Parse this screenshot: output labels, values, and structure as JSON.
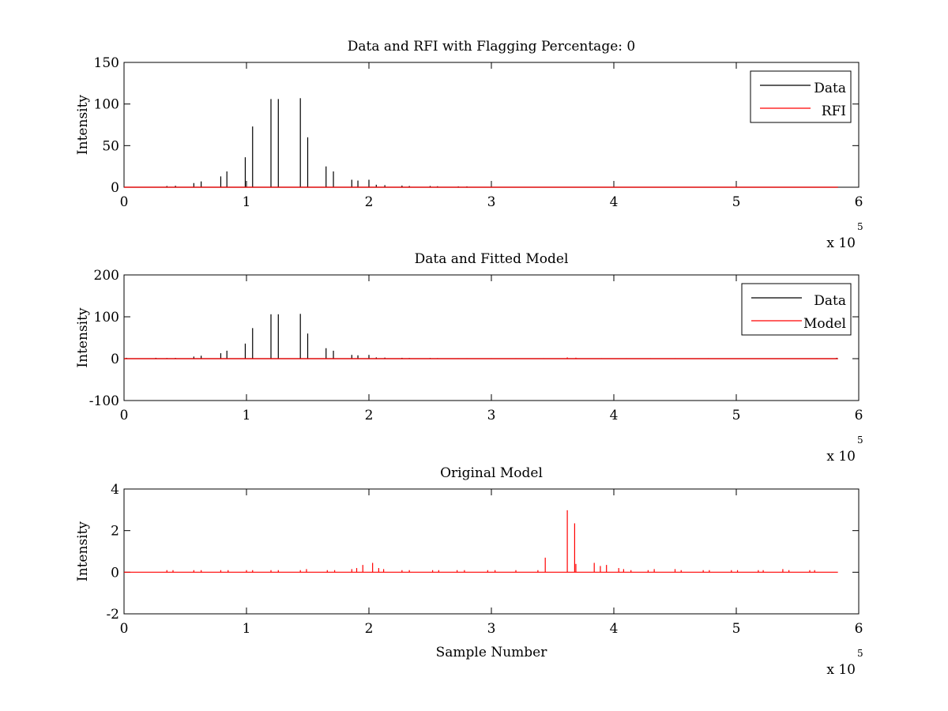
{
  "colors": {
    "data": "#000000",
    "red": "#ff0000",
    "axes": "#000000",
    "background": "#ffffff"
  },
  "chart_data": [
    {
      "type": "line",
      "title": "Data and RFI with Flagging Percentage: 0",
      "xlabel": "",
      "ylabel": "Intensity",
      "xlim": [
        0,
        6
      ],
      "ylim": [
        0,
        150
      ],
      "xticks": [
        "0",
        "1",
        "2",
        "3",
        "4",
        "5",
        "6"
      ],
      "yticks": [
        "0",
        "50",
        "100",
        "150"
      ],
      "x_multiplier": {
        "base": "x 10",
        "exponent": "5"
      },
      "grid": false,
      "legend_position": "top-right",
      "series": [
        {
          "name": "Data",
          "color": "#000000",
          "x_end": 5.83,
          "spikes": [
            [
              0.35,
              1.5
            ],
            [
              0.42,
              1.8
            ],
            [
              0.57,
              5
            ],
            [
              0.63,
              7
            ],
            [
              0.79,
              13
            ],
            [
              0.84,
              19
            ],
            [
              0.99,
              36
            ],
            [
              1.05,
              73
            ],
            [
              1.2,
              106
            ],
            [
              1.26,
              106
            ],
            [
              1.44,
              107
            ],
            [
              1.5,
              60
            ],
            [
              1.65,
              25
            ],
            [
              1.71,
              19
            ],
            [
              1.86,
              9
            ],
            [
              1.91,
              8
            ],
            [
              2.0,
              9
            ],
            [
              2.06,
              3
            ],
            [
              2.13,
              2.5
            ],
            [
              2.27,
              2
            ],
            [
              2.33,
              1.5
            ],
            [
              2.5,
              1.5
            ],
            [
              2.56,
              1.2
            ],
            [
              2.73,
              1
            ],
            [
              2.8,
              1
            ]
          ]
        },
        {
          "name": "RFI",
          "color": "#ff0000",
          "x_end": 5.83,
          "spikes": []
        }
      ]
    },
    {
      "type": "line",
      "title": "Data and Fitted Model",
      "xlabel": "",
      "ylabel": "Intensity",
      "xlim": [
        0,
        6
      ],
      "ylim": [
        -100,
        200
      ],
      "xticks": [
        "0",
        "1",
        "2",
        "3",
        "4",
        "5",
        "6"
      ],
      "yticks": [
        "-100",
        "0",
        "100",
        "200"
      ],
      "x_multiplier": {
        "base": "x 10",
        "exponent": "5"
      },
      "grid": false,
      "legend_position": "top-right",
      "series": [
        {
          "name": "Data",
          "color": "#000000",
          "x_end": 5.83,
          "spikes": [
            [
              0.02,
              2
            ],
            [
              0.26,
              2
            ],
            [
              0.35,
              1.5
            ],
            [
              0.42,
              1.8
            ],
            [
              0.57,
              5
            ],
            [
              0.63,
              7
            ],
            [
              0.79,
              13
            ],
            [
              0.84,
              19
            ],
            [
              0.99,
              36
            ],
            [
              1.05,
              73
            ],
            [
              1.2,
              106
            ],
            [
              1.26,
              106
            ],
            [
              1.44,
              107
            ],
            [
              1.5,
              60
            ],
            [
              1.65,
              25
            ],
            [
              1.71,
              19
            ],
            [
              1.86,
              9
            ],
            [
              1.91,
              8
            ],
            [
              2.0,
              9
            ],
            [
              2.06,
              3
            ],
            [
              2.13,
              2.5
            ],
            [
              2.27,
              2
            ],
            [
              2.33,
              1.5
            ],
            [
              2.5,
              1.5
            ],
            [
              2.56,
              1.2
            ],
            [
              2.73,
              1
            ],
            [
              2.8,
              1
            ],
            [
              3.0,
              1
            ],
            [
              3.2,
              1
            ],
            [
              3.43,
              1
            ],
            [
              3.62,
              1
            ],
            [
              3.7,
              1
            ],
            [
              3.9,
              1
            ],
            [
              4.1,
              1
            ],
            [
              4.3,
              1
            ],
            [
              4.5,
              1
            ],
            [
              4.77,
              1
            ],
            [
              5.82,
              2
            ]
          ]
        },
        {
          "name": "Model",
          "color": "#ff0000",
          "x_end": 5.83,
          "spikes": [
            [
              1.2,
              0.5
            ],
            [
              1.44,
              0.5
            ],
            [
              3.62,
              3
            ],
            [
              3.69,
              2.3
            ]
          ]
        }
      ]
    },
    {
      "type": "line",
      "title": "Original Model",
      "xlabel": "Sample Number",
      "ylabel": "Intensity",
      "xlim": [
        0,
        6
      ],
      "ylim": [
        -2,
        4
      ],
      "xticks": [
        "0",
        "1",
        "2",
        "3",
        "4",
        "5",
        "6"
      ],
      "yticks": [
        "-2",
        "0",
        "2",
        "4"
      ],
      "x_multiplier": {
        "base": "x 10",
        "exponent": "5"
      },
      "grid": false,
      "legend_position": "none",
      "series": [
        {
          "name": "",
          "color": "#ff0000",
          "x_end": 5.83,
          "spikes": [
            [
              0.35,
              0.1
            ],
            [
              0.4,
              0.1
            ],
            [
              0.57,
              0.1
            ],
            [
              0.63,
              0.1
            ],
            [
              0.79,
              0.1
            ],
            [
              0.85,
              0.1
            ],
            [
              1.0,
              0.1
            ],
            [
              1.05,
              0.1
            ],
            [
              1.2,
              0.1
            ],
            [
              1.26,
              0.1
            ],
            [
              1.44,
              0.1
            ],
            [
              1.49,
              0.15
            ],
            [
              1.66,
              0.1
            ],
            [
              1.72,
              0.1
            ],
            [
              1.86,
              0.15
            ],
            [
              1.9,
              0.2
            ],
            [
              1.95,
              0.35
            ],
            [
              2.03,
              0.45
            ],
            [
              2.08,
              0.2
            ],
            [
              2.12,
              0.15
            ],
            [
              2.27,
              0.1
            ],
            [
              2.33,
              0.1
            ],
            [
              2.52,
              0.1
            ],
            [
              2.57,
              0.1
            ],
            [
              2.72,
              0.1
            ],
            [
              2.78,
              0.1
            ],
            [
              2.97,
              0.1
            ],
            [
              3.03,
              0.1
            ],
            [
              3.2,
              0.1
            ],
            [
              3.38,
              0.1
            ],
            [
              3.44,
              0.7
            ],
            [
              3.62,
              2.98
            ],
            [
              3.68,
              2.35
            ],
            [
              3.69,
              0.4
            ],
            [
              3.84,
              0.45
            ],
            [
              3.89,
              0.3
            ],
            [
              3.94,
              0.35
            ],
            [
              4.04,
              0.2
            ],
            [
              4.08,
              0.15
            ],
            [
              4.14,
              0.1
            ],
            [
              4.28,
              0.1
            ],
            [
              4.33,
              0.15
            ],
            [
              4.5,
              0.15
            ],
            [
              4.55,
              0.1
            ],
            [
              4.73,
              0.1
            ],
            [
              4.78,
              0.1
            ],
            [
              4.96,
              0.1
            ],
            [
              5.01,
              0.1
            ],
            [
              5.18,
              0.1
            ],
            [
              5.22,
              0.1
            ],
            [
              5.38,
              0.15
            ],
            [
              5.43,
              0.1
            ],
            [
              5.6,
              0.1
            ],
            [
              5.64,
              0.1
            ]
          ]
        }
      ]
    }
  ]
}
